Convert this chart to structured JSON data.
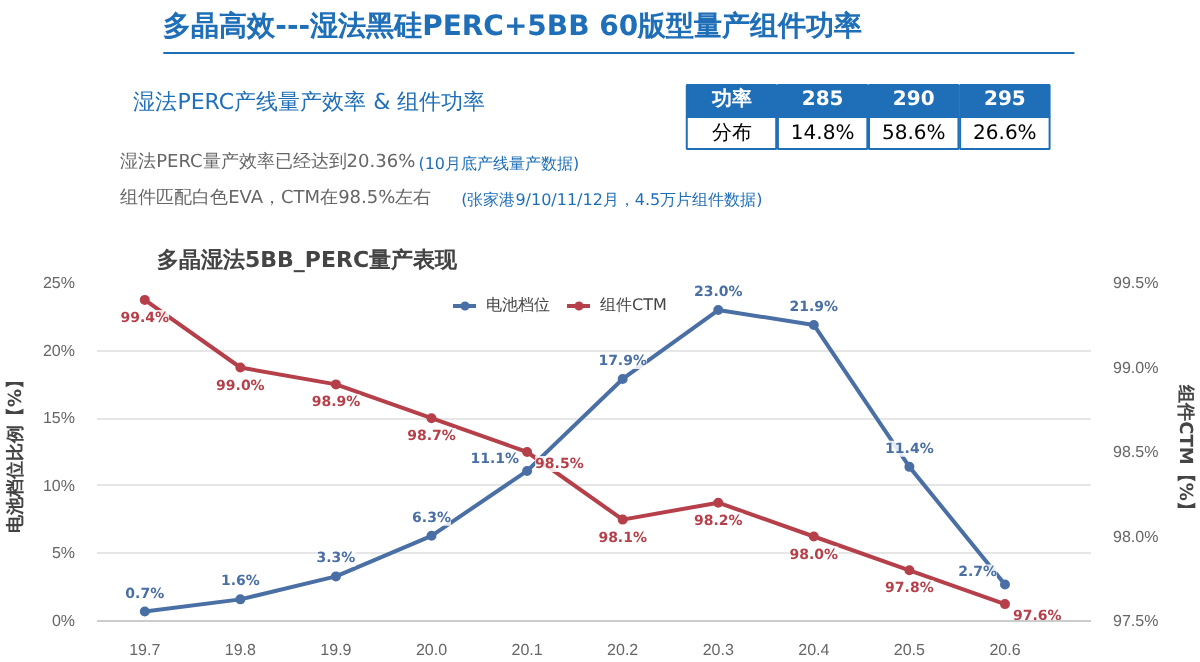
{
  "chart_data": {
    "type": "line",
    "title": "多晶高效---湿法黑硅PERC+5BB 60版型量产组件功率",
    "subtitle": "多晶湿法5BB_PERC量产表现",
    "annotations": [
      "湿法PERC产线量产效率 & 组件功率",
      "湿法PERC量产效率已经达到20.36%",
      "(10月底产线量产数据)",
      "组件匹配白色EVA，CTM在98.5%左右",
      "(张家港9/10/11/12月，4.5万片组件数据)",
      "功率",
      "285",
      "290",
      "295",
      "分布",
      "14.8%",
      "58.6%",
      "26.6%"
    ],
    "categories": [
      "19.7",
      "19.8",
      "19.9",
      "20.0",
      "20.1",
      "20.2",
      "20.3",
      "20.4",
      "20.5",
      "20.6"
    ],
    "series": [
      {
        "name": "电池档位",
        "color": "#4a6fa5",
        "values": [
          0.7,
          1.6,
          3.3,
          6.3,
          11.1,
          17.9,
          23.0,
          21.9,
          11.4,
          2.7
        ],
        "value_labels": [
          "0.7%",
          "1.6%",
          "3.3%",
          "6.3%",
          "11.1%",
          "17.9%",
          "23.0%",
          "21.9%",
          "11.4%",
          "2.7%"
        ]
      },
      {
        "name": "组件CTM",
        "color": "#b5404a",
        "axis": "y2",
        "values": [
          99.4,
          99.0,
          98.9,
          98.7,
          98.5,
          98.1,
          98.2,
          98.0,
          97.8,
          97.6
        ],
        "value_labels": [
          "99.4%",
          "99.0%",
          "98.9%",
          "98.7%",
          "98.5%",
          "98.1%",
          "98.2%",
          "98.0%",
          "97.8%",
          "97.6%"
        ]
      }
    ],
    "ylabel": "电池档位比例【%】",
    "y2label": "组件CTM【%】",
    "ylim": [
      0,
      25
    ],
    "yticks": [
      {
        "value": 0,
        "label": "0%"
      },
      {
        "value": 5,
        "label": "5%"
      },
      {
        "value": 10,
        "label": "10%"
      },
      {
        "value": 15,
        "label": "15%"
      },
      {
        "value": 20,
        "label": "20%"
      },
      {
        "value": 25,
        "label": "25%"
      }
    ],
    "y2lim": [
      97.5,
      99.5
    ],
    "y2ticks": [
      {
        "value": 97.5,
        "label": "97.5%"
      },
      {
        "value": 98.0,
        "label": "98.0%"
      },
      {
        "value": 98.5,
        "label": "98.5%"
      },
      {
        "value": 99.0,
        "label": "99.0%"
      },
      {
        "value": 99.5,
        "label": "99.5%"
      }
    ],
    "grid": "y",
    "legend": "top",
    "marker": "circle",
    "line_style": "solid"
  }
}
